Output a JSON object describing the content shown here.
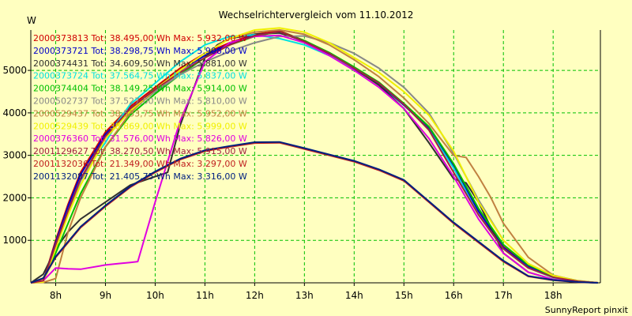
{
  "chart_data": {
    "type": "line",
    "title": "Wechselrichtervergleich vom 11.10.2012",
    "ylabel": "W",
    "footer": "SunnyReport pinxit",
    "xlim": [
      7.5,
      18.95
    ],
    "ylim": [
      0,
      5950
    ],
    "x_ticks": [
      8,
      9,
      10,
      11,
      12,
      13,
      14,
      15,
      16,
      17,
      18
    ],
    "x_tick_labels": [
      "8h",
      "9h",
      "10h",
      "11h",
      "12h",
      "13h",
      "14h",
      "15h",
      "16h",
      "17h",
      "18h"
    ],
    "y_ticks": [
      1000,
      2000,
      3000,
      4000,
      5000
    ],
    "y_tick_labels": [
      "1000",
      "2000",
      "3000",
      "4000",
      "5000"
    ],
    "grid": true,
    "legend_position": "top-left",
    "series": [
      {
        "name": "2000373813 Tot: 38.495,00 Wh Max: 5.932,00 W",
        "color": "#d00000",
        "x": [
          7.5,
          7.75,
          8.0,
          8.25,
          8.5,
          9.0,
          9.5,
          10.0,
          10.5,
          11.0,
          11.5,
          12.0,
          12.5,
          13.0,
          13.5,
          14.0,
          14.5,
          15.0,
          15.5,
          16.0,
          16.5,
          17.0,
          17.5,
          18.0,
          18.5,
          18.9
        ],
        "y": [
          0,
          30,
          1000,
          1850,
          2600,
          3550,
          4150,
          4600,
          5050,
          5400,
          5650,
          5850,
          5930,
          5700,
          5400,
          5050,
          4700,
          4200,
          3650,
          2750,
          1700,
          850,
          400,
          150,
          40,
          0
        ]
      },
      {
        "name": "2000373721 Tot: 38.298,75 Wh Max: 5.908,00 W",
        "color": "#0000c8",
        "x": [
          7.5,
          7.75,
          8.0,
          8.25,
          8.5,
          9.0,
          9.5,
          10.0,
          10.5,
          11.0,
          11.5,
          12.0,
          12.5,
          13.0,
          13.5,
          14.0,
          14.5,
          15.0,
          15.5,
          16.0,
          16.5,
          17.0,
          17.5,
          18.0,
          18.5,
          18.9
        ],
        "y": [
          0,
          20,
          950,
          1800,
          2550,
          3500,
          4100,
          4550,
          5000,
          5350,
          5620,
          5830,
          5900,
          5680,
          5380,
          5030,
          4680,
          4180,
          3630,
          2730,
          1680,
          830,
          380,
          140,
          35,
          0
        ]
      },
      {
        "name": "2000374431 Tot: 34.609,50 Wh Max: 5.881,00 W",
        "color": "#303030",
        "x": [
          7.5,
          7.75,
          8.0,
          8.25,
          8.5,
          9.0,
          9.5,
          10.0,
          10.25,
          10.5,
          10.75,
          11.0,
          11.25,
          11.5,
          12.0,
          12.5,
          13.0,
          13.5,
          14.0,
          14.5,
          15.0,
          15.5,
          16.0,
          16.25,
          16.5,
          17.0,
          17.5,
          18.0,
          18.5,
          18.9
        ],
        "y": [
          0,
          200,
          800,
          1200,
          1500,
          1900,
          2300,
          2500,
          2600,
          3700,
          4500,
          5300,
          5600,
          5750,
          5850,
          5880,
          5700,
          5400,
          5050,
          4650,
          4100,
          3300,
          2450,
          2350,
          1900,
          700,
          250,
          80,
          20,
          0
        ]
      },
      {
        "name": "2000373724 Tot: 37.564,75 Wh Max: 5.837,00 W",
        "color": "#00e0e0",
        "x": [
          7.5,
          7.75,
          8.0,
          8.25,
          8.5,
          8.75,
          9.0,
          9.25,
          9.5,
          10.0,
          10.5,
          11.0,
          11.5,
          12.0,
          12.5,
          13.0,
          13.5,
          14.0,
          14.5,
          15.0,
          15.5,
          16.0,
          16.5,
          17.0,
          17.5,
          18.0,
          18.5,
          18.9
        ],
        "y": [
          0,
          20,
          900,
          1700,
          2400,
          2900,
          3300,
          3800,
          4200,
          4700,
          5200,
          5600,
          5800,
          5837,
          5750,
          5600,
          5350,
          5050,
          4700,
          4200,
          3600,
          2700,
          1600,
          800,
          350,
          120,
          30,
          0
        ]
      },
      {
        "name": "2000374404 Tot: 38.149,25 Wh Max: 5.914,00 W",
        "color": "#00c000",
        "x": [
          7.5,
          7.75,
          8.0,
          8.25,
          8.5,
          9.0,
          9.5,
          10.0,
          10.5,
          11.0,
          11.5,
          12.0,
          12.5,
          13.0,
          13.5,
          14.0,
          14.5,
          15.0,
          15.5,
          16.0,
          16.5,
          17.0,
          17.5,
          18.0,
          18.5,
          18.9
        ],
        "y": [
          0,
          40,
          700,
          1400,
          2100,
          3200,
          3950,
          4450,
          4900,
          5300,
          5600,
          5800,
          5914,
          5700,
          5420,
          5080,
          4720,
          4220,
          3680,
          2800,
          1750,
          900,
          420,
          160,
          45,
          0
        ]
      },
      {
        "name": "2000502737 Tot: 37.527,00 Wh Max: 5.810,00 W",
        "color": "#888888",
        "x": [
          7.5,
          7.75,
          8.0,
          8.25,
          8.5,
          9.0,
          9.5,
          10.0,
          10.5,
          11.0,
          11.5,
          12.0,
          12.5,
          13.0,
          13.5,
          14.0,
          14.5,
          15.0,
          15.5,
          16.0,
          16.5,
          17.0,
          17.5,
          18.0,
          18.5,
          18.9
        ],
        "y": [
          0,
          30,
          850,
          1650,
          2400,
          3400,
          4050,
          4500,
          4900,
          5200,
          5450,
          5650,
          5800,
          5810,
          5650,
          5400,
          5050,
          4600,
          4000,
          3050,
          1950,
          1000,
          450,
          170,
          50,
          0
        ]
      },
      {
        "name": "2000529437 Tot: 38.533,75 Wh Max: 5.952,00 W",
        "color": "#c08040",
        "x": [
          7.5,
          7.75,
          8.0,
          8.25,
          8.5,
          9.0,
          9.5,
          10.0,
          10.5,
          11.0,
          11.5,
          12.0,
          12.5,
          13.0,
          13.5,
          14.0,
          14.5,
          15.0,
          15.5,
          16.0,
          16.25,
          16.5,
          16.75,
          17.0,
          17.5,
          18.0,
          18.5,
          18.9
        ],
        "y": [
          0,
          10,
          100,
          1200,
          2000,
          3200,
          4000,
          4550,
          5000,
          5400,
          5750,
          5900,
          5952,
          5850,
          5600,
          5250,
          4850,
          4350,
          3750,
          3000,
          2950,
          2500,
          2000,
          1400,
          600,
          180,
          40,
          0
        ]
      },
      {
        "name": "2000529439 Tot: 38.869,00 Wh Max: 5.999,00 W",
        "color": "#f0f000",
        "x": [
          7.5,
          7.75,
          8.0,
          8.25,
          8.5,
          9.0,
          9.5,
          10.0,
          10.5,
          11.0,
          11.5,
          12.0,
          12.5,
          13.0,
          13.5,
          14.0,
          14.5,
          15.0,
          15.5,
          16.0,
          16.5,
          17.0,
          17.5,
          18.0,
          18.5,
          18.9
        ],
        "y": [
          0,
          20,
          800,
          1600,
          2300,
          3400,
          4050,
          4550,
          5000,
          5400,
          5750,
          5950,
          5999,
          5900,
          5650,
          5300,
          4950,
          4500,
          3950,
          3100,
          1900,
          1000,
          450,
          170,
          45,
          0
        ]
      },
      {
        "name": "2000376360 Tot: 31.576,00 Wh Max: 5.826,00 W",
        "color": "#e000e0",
        "x": [
          7.5,
          7.75,
          8.0,
          8.25,
          8.5,
          9.0,
          9.25,
          9.5,
          9.65,
          9.8,
          10.0,
          10.5,
          11.0,
          11.5,
          12.0,
          12.5,
          13.0,
          13.5,
          14.0,
          14.5,
          15.0,
          15.5,
          16.0,
          16.5,
          17.0,
          17.5,
          18.0,
          18.5,
          18.9
        ],
        "y": [
          0,
          50,
          350,
          330,
          320,
          420,
          450,
          480,
          500,
          1100,
          1900,
          3800,
          5200,
          5650,
          5800,
          5826,
          5650,
          5350,
          5000,
          4600,
          4100,
          3400,
          2500,
          1500,
          700,
          250,
          80,
          20,
          0
        ]
      },
      {
        "name": "2001129627 Tot: 38.270,50 Wh Max: 5.915,00 W",
        "color": "#a02040",
        "x": [
          7.5,
          7.75,
          8.0,
          8.25,
          8.5,
          9.0,
          9.5,
          10.0,
          10.5,
          11.0,
          11.5,
          12.0,
          12.5,
          13.0,
          13.5,
          14.0,
          14.5,
          15.0,
          15.5,
          16.0,
          16.5,
          17.0,
          17.5,
          18.0,
          18.5,
          18.9
        ],
        "y": [
          0,
          50,
          900,
          1700,
          2450,
          3450,
          4100,
          4550,
          4950,
          5300,
          5600,
          5820,
          5915,
          5680,
          5400,
          5050,
          4700,
          4200,
          3600,
          2600,
          1600,
          800,
          350,
          130,
          35,
          0
        ]
      },
      {
        "name": "2001132036 Tot: 21.349,00 Wh Max: 3.297,00 W",
        "color": "#c02020",
        "x": [
          7.5,
          7.75,
          8.0,
          8.5,
          9.0,
          9.5,
          10.0,
          10.5,
          11.0,
          11.5,
          12.0,
          12.5,
          13.0,
          13.5,
          14.0,
          14.5,
          15.0,
          15.5,
          16.0,
          16.5,
          17.0,
          17.5,
          18.0,
          18.5,
          18.9
        ],
        "y": [
          0,
          100,
          600,
          1300,
          1800,
          2250,
          2600,
          2900,
          3100,
          3200,
          3290,
          3297,
          3150,
          3000,
          2850,
          2650,
          2400,
          1900,
          1400,
          950,
          500,
          150,
          60,
          15,
          0
        ]
      },
      {
        "name": "2001132087 Tot: 21.405,75 Wh Max: 3.316,00 W",
        "color": "#002080",
        "x": [
          7.5,
          7.75,
          8.0,
          8.5,
          9.0,
          9.5,
          10.0,
          10.5,
          11.0,
          11.5,
          12.0,
          12.5,
          13.0,
          13.5,
          14.0,
          14.5,
          15.0,
          15.5,
          16.0,
          16.5,
          17.0,
          17.5,
          18.0,
          18.5,
          18.9
        ],
        "y": [
          0,
          110,
          620,
          1320,
          1820,
          2270,
          2620,
          2920,
          3120,
          3220,
          3310,
          3316,
          3170,
          3020,
          2870,
          2670,
          2420,
          1920,
          1420,
          970,
          520,
          160,
          65,
          18,
          0
        ]
      }
    ]
  }
}
